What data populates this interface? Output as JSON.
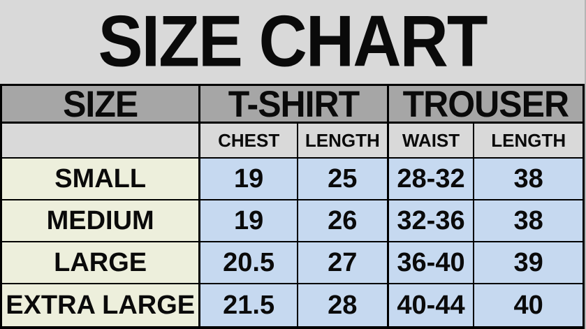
{
  "title": "SIZE CHART",
  "colors": {
    "page_background": "#d9d9d9",
    "group_header_background": "#a6a6a6",
    "sub_header_background": "#d9d9d9",
    "size_column_background": "#edefdc",
    "value_cell_background": "#c6d9f0",
    "grid_line": "#000000",
    "text": "#0a0a0a"
  },
  "table": {
    "col_groups": [
      {
        "label": "SIZE"
      },
      {
        "label": "T-SHIRT"
      },
      {
        "label": "TROUSER"
      }
    ],
    "sub_headers": [
      "",
      "CHEST",
      "LENGTH",
      "WAIST",
      "LENGTH"
    ],
    "rows": [
      {
        "size": "SMALL",
        "values": [
          "19",
          "25",
          "28-32",
          "38"
        ]
      },
      {
        "size": "MEDIUM",
        "values": [
          "19",
          "26",
          "32-36",
          "38"
        ]
      },
      {
        "size": "LARGE",
        "values": [
          "20.5",
          "27",
          "36-40",
          "39"
        ]
      },
      {
        "size": "EXTRA LARGE",
        "values": [
          "21.5",
          "28",
          "40-44",
          "40"
        ]
      }
    ]
  },
  "chart_data": {
    "type": "table",
    "title": "SIZE CHART",
    "column_groups": [
      "SIZE",
      "T-SHIRT",
      "TROUSER"
    ],
    "columns": [
      "SIZE",
      "T-SHIRT CHEST",
      "T-SHIRT LENGTH",
      "TROUSER WAIST",
      "TROUSER LENGTH"
    ],
    "rows": [
      [
        "SMALL",
        "19",
        "25",
        "28-32",
        "38"
      ],
      [
        "MEDIUM",
        "19",
        "26",
        "32-36",
        "38"
      ],
      [
        "LARGE",
        "20.5",
        "27",
        "36-40",
        "39"
      ],
      [
        "EXTRA LARGE",
        "21.5",
        "28",
        "40-44",
        "40"
      ]
    ]
  }
}
